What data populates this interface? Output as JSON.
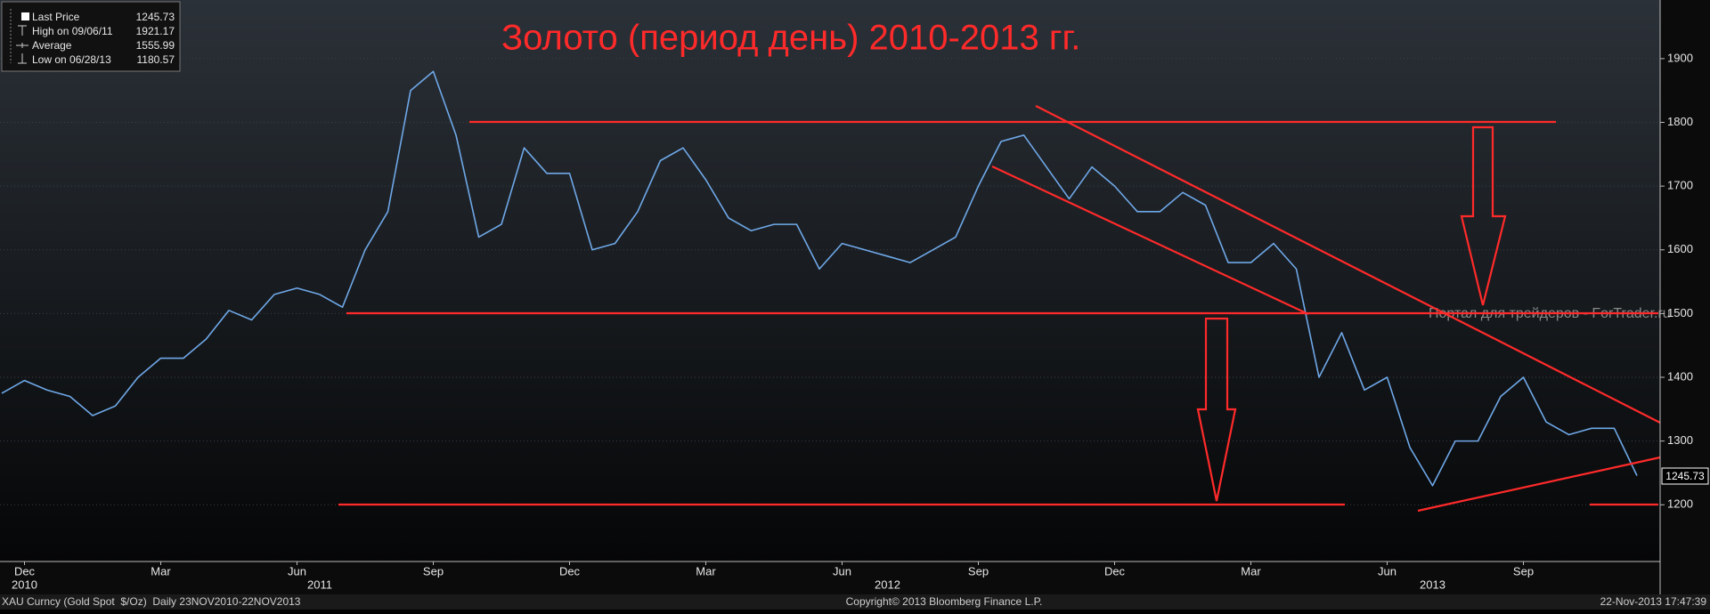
{
  "chart_data": {
    "type": "line",
    "title": "Золото (период день) 2010-2013 гг.",
    "watermark": "Портал для трейдеров - ForTrader.ru",
    "legend": [
      {
        "label": "Last Price",
        "value": 1245.73
      },
      {
        "label": "High on 09/06/11",
        "value": 1921.17
      },
      {
        "label": "Average",
        "value": 1555.99
      },
      {
        "label": "Low on 06/28/13",
        "value": 1180.57
      }
    ],
    "categories": [
      null,
      "Dec",
      null,
      null,
      null,
      null,
      null,
      "Mar",
      null,
      null,
      null,
      null,
      null,
      "Jun",
      null,
      null,
      null,
      null,
      null,
      "Sep",
      null,
      null,
      null,
      null,
      null,
      "Dec",
      null,
      null,
      null,
      null,
      null,
      "Mar",
      null,
      null,
      null,
      null,
      null,
      "Jun",
      null,
      null,
      null,
      null,
      null,
      "Sep",
      null,
      null,
      null,
      null,
      null,
      "Dec",
      null,
      null,
      null,
      null,
      null,
      "Mar",
      null,
      null,
      null,
      null,
      null,
      "Jun",
      null,
      null,
      null,
      null,
      null,
      "Sep",
      null,
      null,
      null,
      null,
      null
    ],
    "year_labels": [
      null,
      "2010",
      null,
      null,
      null,
      null,
      null,
      null,
      null,
      null,
      null,
      null,
      null,
      null,
      "2011",
      null,
      null,
      null,
      null,
      null,
      null,
      null,
      null,
      null,
      null,
      null,
      null,
      null,
      null,
      null,
      null,
      null,
      null,
      null,
      null,
      null,
      null,
      null,
      null,
      "2012",
      null,
      null,
      null,
      null,
      null,
      null,
      null,
      null,
      null,
      null,
      null,
      null,
      null,
      null,
      null,
      null,
      null,
      null,
      null,
      null,
      null,
      null,
      null,
      "2013",
      null,
      null,
      null,
      null,
      null,
      null,
      null,
      null,
      null
    ],
    "series": [
      {
        "name": "Last Price",
        "color": "#6fa8e8",
        "values": [
          1375,
          1395,
          1380,
          1370,
          1340,
          1355,
          1400,
          1430,
          1430,
          1460,
          1505,
          1490,
          1530,
          1540,
          1530,
          1510,
          1600,
          1660,
          1850,
          1880,
          1780,
          1620,
          1640,
          1760,
          1720,
          1720,
          1600,
          1610,
          1660,
          1740,
          1760,
          1710,
          1650,
          1630,
          1640,
          1640,
          1570,
          1610,
          1600,
          1590,
          1580,
          1600,
          1620,
          1700,
          1770,
          1780,
          1730,
          1680,
          1730,
          1700,
          1660,
          1660,
          1690,
          1670,
          1580,
          1580,
          1610,
          1570,
          1400,
          1470,
          1380,
          1400,
          1290,
          1230,
          1300,
          1300,
          1370,
          1400,
          1330,
          1310,
          1320,
          1320,
          1245.73
        ]
      }
    ],
    "ylim": [
      1111,
      1992
    ],
    "yticks": [
      1200,
      1300,
      1400,
      1500,
      1600,
      1700,
      1800,
      1900
    ],
    "grid": true,
    "footer": {
      "left": "XAU Curncy (Gold Spot  $/Oz)  Daily 23NOV2010-22NOV2013",
      "center": "Copyright© 2013 Bloomberg Finance L.P.",
      "right": "22-Nov-2013 17:47:39"
    }
  }
}
